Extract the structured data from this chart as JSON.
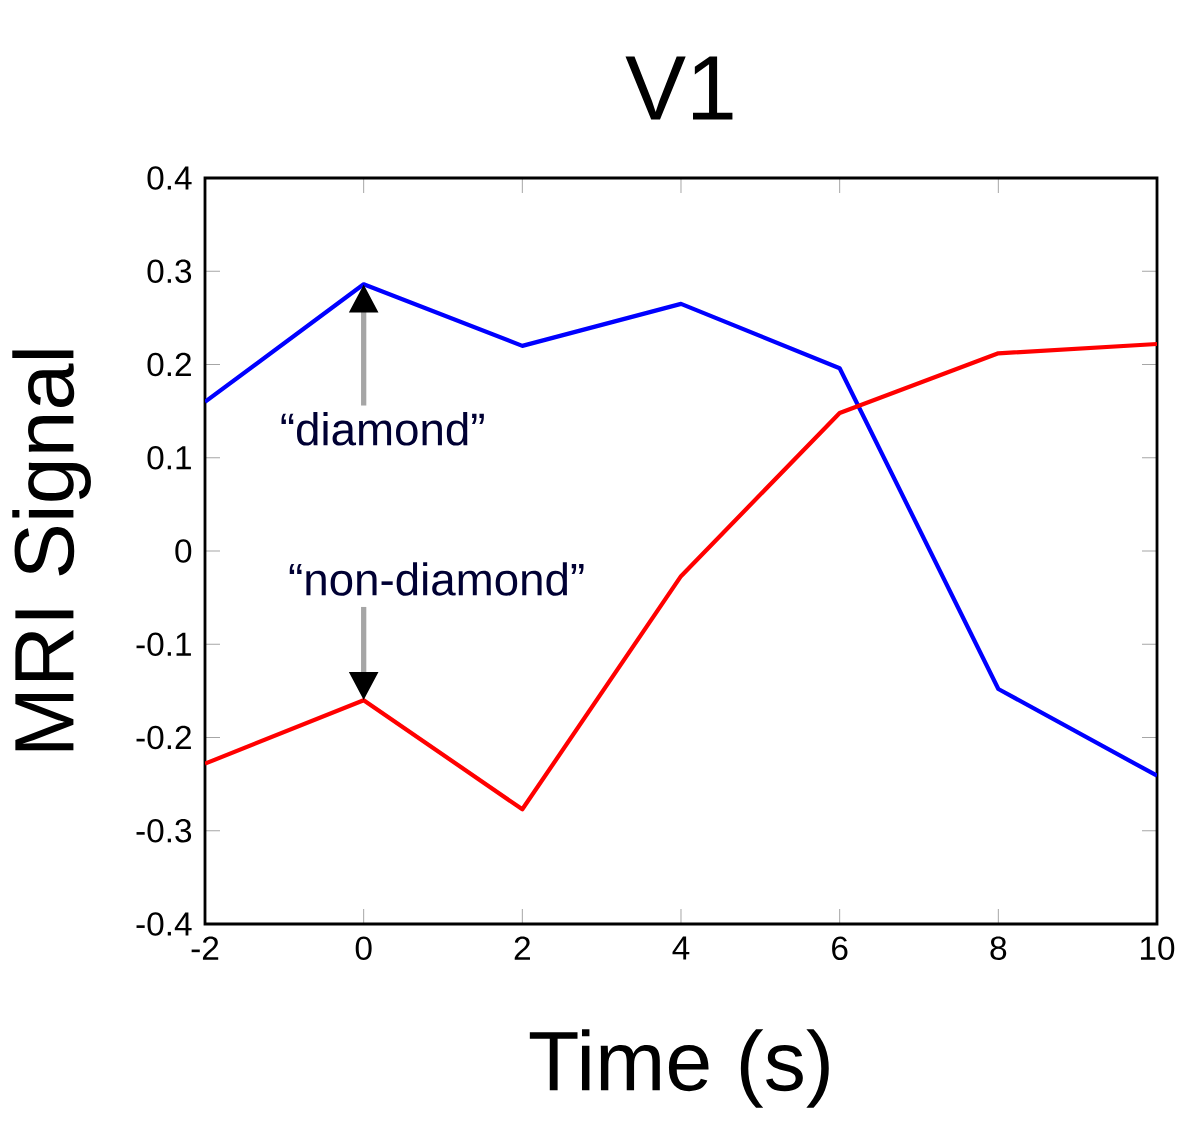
{
  "chart_data": {
    "type": "line",
    "title": "V1",
    "xlabel": "Time (s)",
    "ylabel": "MRI Signal",
    "x": [
      -2,
      0,
      2,
      4,
      6,
      8,
      10
    ],
    "series": [
      {
        "color": "#0000ff",
        "values": [
          0.16,
          0.286,
          0.22,
          0.265,
          0.196,
          -0.148,
          -0.241
        ]
      },
      {
        "color": "#ff0000",
        "values": [
          -0.228,
          -0.16,
          -0.277,
          -0.027,
          0.148,
          0.212,
          0.222
        ]
      }
    ],
    "xlim": [
      -2,
      10
    ],
    "xticks": [
      -2,
      0,
      2,
      4,
      6,
      8,
      10
    ],
    "ylim": [
      -0.4,
      0.4
    ],
    "yticks": [
      -0.4,
      -0.3,
      -0.2,
      -0.1,
      0,
      0.1,
      0.2,
      0.3,
      0.4
    ],
    "annotations": [
      {
        "text": "“diamond”",
        "x": 0,
        "y": 0.286
      },
      {
        "text": "“non-diamond”",
        "x": 0,
        "y": -0.16
      }
    ],
    "grid": false,
    "marker": "none",
    "line_style": "solid"
  }
}
